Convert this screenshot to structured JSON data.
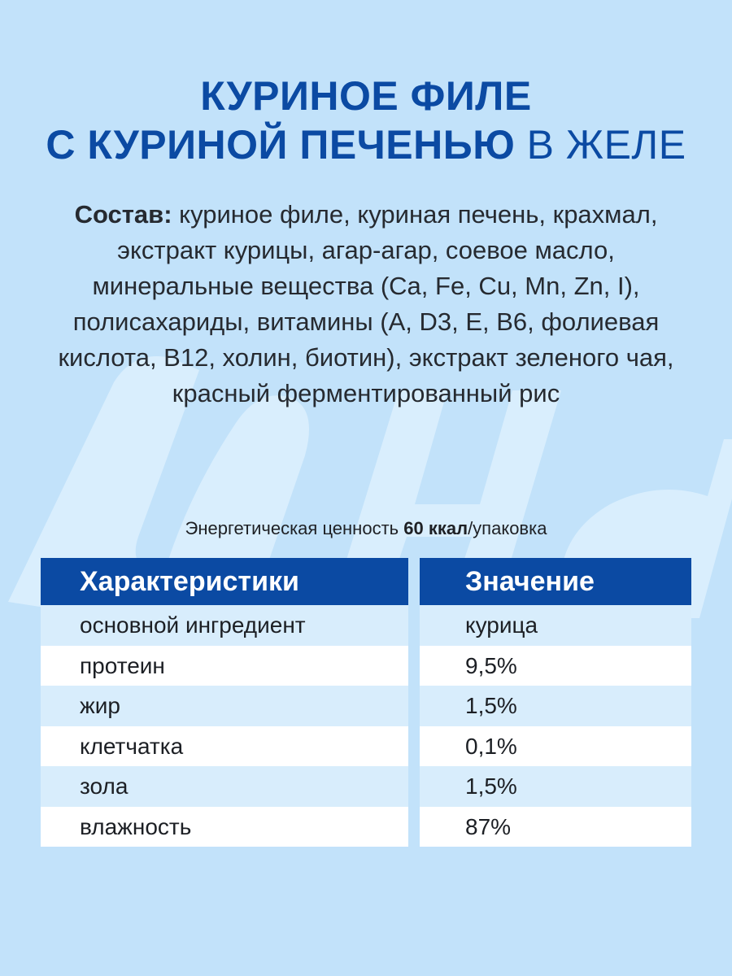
{
  "title": {
    "line1": "КУРИНОЕ ФИЛЕ",
    "line2_bold": "С КУРИНОЙ ПЕЧЕНЬЮ",
    "line2_light": "В ЖЕЛЕ"
  },
  "composition": {
    "label": "Состав:",
    "text": "куриное филе, куриная печень, крахмал, экстракт курицы, агар-агар, соевое масло, минеральные вещества (Ca, Fe, Cu, Mn, Zn, I), полисахариды, витамины (A, D3, E, B6, фолиевая кислота, B12, холин, биотин), экстракт зеленого чая, красный ферментированный рис"
  },
  "energy": {
    "prefix": "Энергетическая ценность",
    "value": "60 ккал",
    "suffix": "/упаковка"
  },
  "table": {
    "header_left": "Характеристики",
    "header_right": "Значение",
    "rows": [
      {
        "name": "основной ингредиент",
        "value": "курица"
      },
      {
        "name": "протеин",
        "value": "9,5%"
      },
      {
        "name": "жир",
        "value": "1,5%"
      },
      {
        "name": "клетчатка",
        "value": "0,1%"
      },
      {
        "name": "зола",
        "value": "1,5%"
      },
      {
        "name": "влажность",
        "value": "87%"
      }
    ]
  },
  "colors": {
    "background": "#c2e2fa",
    "brand_blue": "#0b4aa3",
    "row_light": "#d8edfc",
    "row_white": "#ffffff"
  }
}
